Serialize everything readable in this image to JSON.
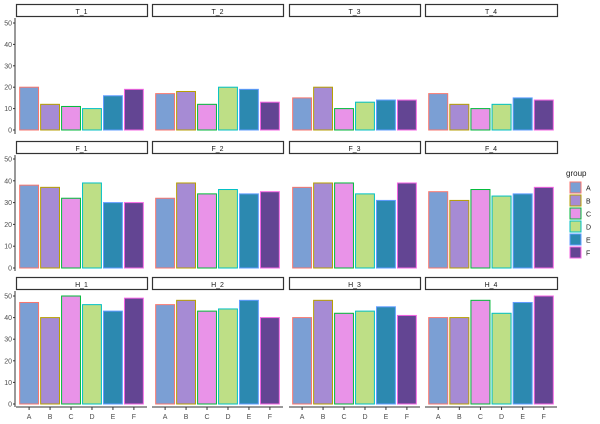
{
  "chart_data": {
    "type": "bar",
    "facet_layout": "wrap 3 rows x 4 columns",
    "categories": [
      "A",
      "B",
      "C",
      "D",
      "E",
      "F"
    ],
    "ylim": [
      0,
      50
    ],
    "yticks": [
      0,
      10,
      20,
      30,
      40,
      50
    ],
    "grid": false,
    "legend": {
      "title": "group",
      "placement": "right",
      "entries": [
        "A",
        "B",
        "C",
        "D",
        "E",
        "F"
      ]
    },
    "fill_colors": {
      "A": "#7b9fd4",
      "B": "#a68bd4",
      "C": "#e993e8",
      "D": "#bedf86",
      "E": "#2c89b0",
      "F": "#634593"
    },
    "outline_colors": {
      "A": "#f8766d",
      "B": "#b79f00",
      "C": "#00ba38",
      "D": "#00bfc4",
      "E": "#619cff",
      "F": "#f564e3"
    },
    "panels": [
      {
        "label": "T_1",
        "values": [
          20,
          12,
          11,
          10,
          16,
          19
        ]
      },
      {
        "label": "T_2",
        "values": [
          17,
          18,
          12,
          20,
          19,
          13
        ]
      },
      {
        "label": "T_3",
        "values": [
          15,
          20,
          10,
          13,
          14,
          14
        ]
      },
      {
        "label": "T_4",
        "values": [
          17,
          12,
          10,
          12,
          15,
          14
        ]
      },
      {
        "label": "F_1",
        "values": [
          38,
          37,
          32,
          39,
          30,
          30
        ]
      },
      {
        "label": "F_2",
        "values": [
          32,
          39,
          34,
          36,
          34,
          35
        ]
      },
      {
        "label": "F_3",
        "values": [
          37,
          39,
          39,
          34,
          31,
          39
        ]
      },
      {
        "label": "F_4",
        "values": [
          35,
          31,
          36,
          33,
          34,
          37
        ]
      },
      {
        "label": "H_1",
        "values": [
          47,
          40,
          50,
          46,
          43,
          49
        ]
      },
      {
        "label": "H_2",
        "values": [
          46,
          48,
          43,
          44,
          48,
          40
        ]
      },
      {
        "label": "H_3",
        "values": [
          40,
          48,
          42,
          43,
          45,
          41
        ]
      },
      {
        "label": "H_4",
        "values": [
          40,
          40,
          48,
          42,
          47,
          50
        ]
      }
    ]
  }
}
